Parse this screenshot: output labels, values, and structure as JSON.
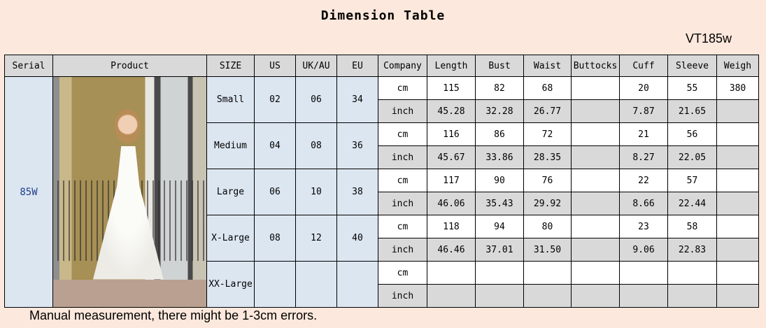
{
  "title": "Dimension Table",
  "code": "VT185w",
  "note": "Manual measurement, there might be 1-3cm errors.",
  "headers": [
    "Serial",
    "Product",
    "SIZE",
    "US",
    "UK/AU",
    "EU",
    "Company",
    "Length",
    "Bust",
    "Waist",
    "Buttocks",
    "Cuff",
    "Sleeve",
    "Weigh"
  ],
  "serial": "85W",
  "sizes": [
    {
      "size": "Small",
      "us": "02",
      "uk": "06",
      "eu": "34",
      "cm": {
        "unit": "cm",
        "length": "115",
        "bust": "82",
        "waist": "68",
        "buttocks": "",
        "cuff": "20",
        "sleeve": "55",
        "weigh": "380"
      },
      "inch": {
        "unit": "inch",
        "length": "45.28",
        "bust": "32.28",
        "waist": "26.77",
        "buttocks": "",
        "cuff": "7.87",
        "sleeve": "21.65",
        "weigh": ""
      }
    },
    {
      "size": "Medium",
      "us": "04",
      "uk": "08",
      "eu": "36",
      "cm": {
        "unit": "cm",
        "length": "116",
        "bust": "86",
        "waist": "72",
        "buttocks": "",
        "cuff": "21",
        "sleeve": "56",
        "weigh": ""
      },
      "inch": {
        "unit": "inch",
        "length": "45.67",
        "bust": "33.86",
        "waist": "28.35",
        "buttocks": "",
        "cuff": "8.27",
        "sleeve": "22.05",
        "weigh": ""
      }
    },
    {
      "size": "Large",
      "us": "06",
      "uk": "10",
      "eu": "38",
      "cm": {
        "unit": "cm",
        "length": "117",
        "bust": "90",
        "waist": "76",
        "buttocks": "",
        "cuff": "22",
        "sleeve": "57",
        "weigh": ""
      },
      "inch": {
        "unit": "inch",
        "length": "46.06",
        "bust": "35.43",
        "waist": "29.92",
        "buttocks": "",
        "cuff": "8.66",
        "sleeve": "22.44",
        "weigh": ""
      }
    },
    {
      "size": "X-Large",
      "us": "08",
      "uk": "12",
      "eu": "40",
      "cm": {
        "unit": "cm",
        "length": "118",
        "bust": "94",
        "waist": "80",
        "buttocks": "",
        "cuff": "23",
        "sleeve": "58",
        "weigh": ""
      },
      "inch": {
        "unit": "inch",
        "length": "46.46",
        "bust": "37.01",
        "waist": "31.50",
        "buttocks": "",
        "cuff": "9.06",
        "sleeve": "22.83",
        "weigh": ""
      }
    },
    {
      "size": "XX-Large",
      "us": "",
      "uk": "",
      "eu": "",
      "cm": {
        "unit": "cm",
        "length": "",
        "bust": "",
        "waist": "",
        "buttocks": "",
        "cuff": "",
        "sleeve": "",
        "weigh": ""
      },
      "inch": {
        "unit": "inch",
        "length": "",
        "bust": "",
        "waist": "",
        "buttocks": "",
        "cuff": "",
        "sleeve": "",
        "weigh": ""
      }
    }
  ]
}
